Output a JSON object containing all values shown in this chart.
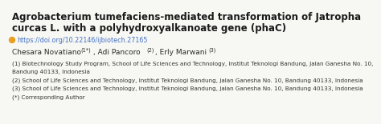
{
  "title_line1": "Agrobacterium tumefaciens-mediated transformation of Jatropha",
  "title_line2": "curcas L. with a polyhydroxyalkanoate gene (phaC)",
  "doi_icon_color": "#E8A020",
  "doi_text": "https://doi.org/10.22146/ijbiotech.27165",
  "doi_color": "#4472C4",
  "affil1": "(1) Biotechnology Study Program, School of Life Sciences and Technology, Institut Teknologi Bandung, Jalan Ganesha No. 10,",
  "affil1b": "Bandung 40133, Indonesia",
  "affil2": "(2) School of Life Sciences and Technology, Institut Teknologi Bandung, Jalan Ganesha No. 10, Bandung 40133, Indonesia",
  "affil3": "(3) School of Life Sciences and Technology, Institut Teknologi Bandung, Jalan Ganesha No. 10, Bandung 40133, Indonesia",
  "affil4": "(*) Corresponding Author",
  "bg_color": "#F7F7F3",
  "title_color": "#1A1A1A",
  "author_color": "#2A2A2A",
  "affil_color": "#333333",
  "title_fontsize": 8.5,
  "author_fontsize": 6.5,
  "author_sup_fontsize": 4.8,
  "affil_fontsize": 5.2,
  "doi_fontsize": 5.8
}
